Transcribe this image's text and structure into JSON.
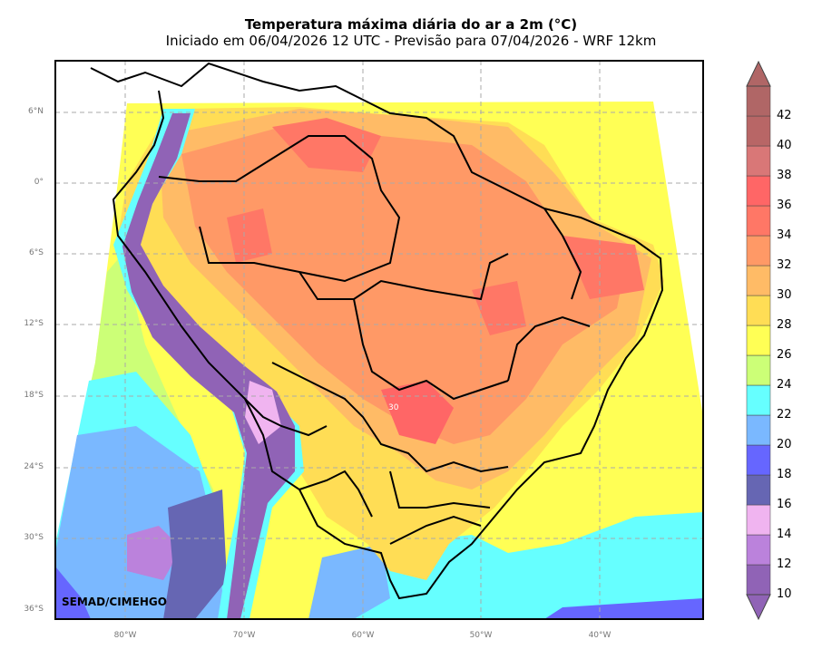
{
  "title": "Temperatura máxima diária do ar a 2m (°C)",
  "subtitle": "Iniciado em 06/04/2026 12 UTC - Previsão para 07/04/2026 - WRF 12km",
  "lat_labels": [
    "6°N",
    "0°",
    "6°S",
    "12°S",
    "18°S",
    "24°S",
    "30°S",
    "36°S"
  ],
  "lon_labels": [
    "80°W",
    "70°W",
    "60°W",
    "50°W",
    "40°W"
  ],
  "colorbar": {
    "labels": [
      "10",
      "12",
      "14",
      "16",
      "18",
      "20",
      "22",
      "24",
      "26",
      "28",
      "30",
      "32",
      "34",
      "36",
      "38",
      "40",
      "42"
    ],
    "colors": [
      "#9063b6",
      "#bb82dc",
      "#f0b4f0",
      "#6666b3",
      "#6666ff",
      "#7ab8ff",
      "#66ffff",
      "#ccff77",
      "#ffff55",
      "#ffdd55",
      "#ffbb66",
      "#ff9966",
      "#ff7766",
      "#ff6666",
      "#d97777",
      "#b86666",
      "#b06666"
    ]
  },
  "field_colors": {
    "ocean_cold": "#7ab8ff",
    "ocean_mid": "#66ffff",
    "ocean_warm": "#ffff55",
    "land_hot": "#ffbb66",
    "land_hotter": "#ff9966",
    "andes": "#9063b6"
  },
  "contour_annotation": "30",
  "credit": "SEMAD/CIMEHGO"
}
